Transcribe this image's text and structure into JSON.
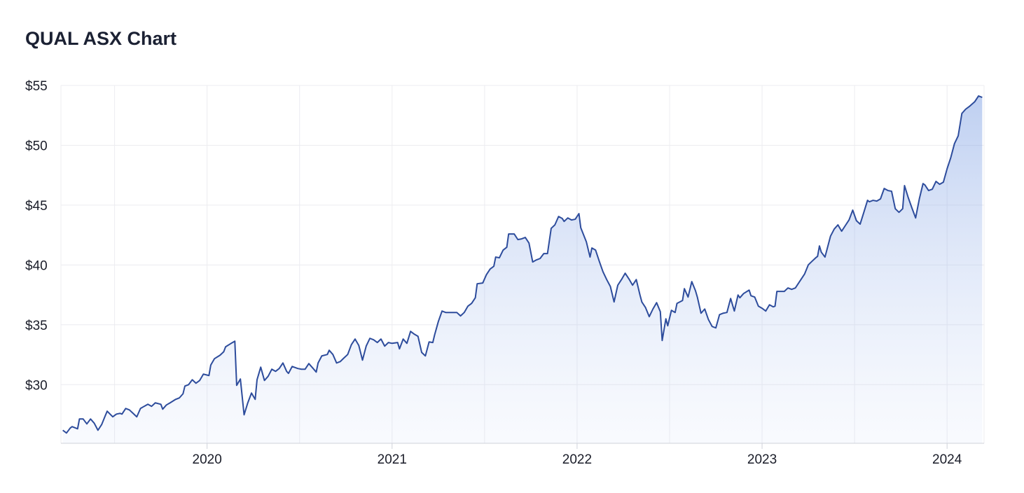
{
  "chart_data": {
    "type": "area",
    "title": "QUAL ASX Chart",
    "color": "#2d4c9c",
    "x": [
      2019.22,
      2019.24,
      2019.26,
      2019.27,
      2019.3,
      2019.31,
      2019.33,
      2019.35,
      2019.37,
      2019.39,
      2019.41,
      2019.43,
      2019.45,
      2019.46,
      2019.49,
      2019.51,
      2019.53,
      2019.54,
      2019.56,
      2019.58,
      2019.6,
      2019.62,
      2019.64,
      2019.66,
      2019.68,
      2019.7,
      2019.72,
      2019.75,
      2019.76,
      2019.78,
      2019.8,
      2019.83,
      2019.85,
      2019.87,
      2019.88,
      2019.9,
      2019.92,
      2019.94,
      2019.96,
      2019.98,
      2020.01,
      2020.02,
      2020.04,
      2020.07,
      2020.09,
      2020.1,
      2020.13,
      2020.15,
      2020.16,
      2020.18,
      2020.2,
      2020.22,
      2020.24,
      2020.26,
      2020.27,
      2020.29,
      2020.31,
      2020.33,
      2020.35,
      2020.37,
      2020.39,
      2020.41,
      2020.43,
      2020.44,
      2020.46,
      2020.49,
      2020.51,
      2020.53,
      2020.55,
      2020.57,
      2020.59,
      2020.6,
      2020.62,
      2020.65,
      2020.66,
      2020.68,
      2020.7,
      2020.72,
      2020.74,
      2020.76,
      2020.78,
      2020.8,
      2020.82,
      2020.84,
      2020.86,
      2020.88,
      2020.9,
      2020.92,
      2020.94,
      2020.96,
      2020.98,
      2021.0,
      2021.03,
      2021.04,
      2021.06,
      2021.08,
      2021.1,
      2021.12,
      2021.14,
      2021.16,
      2021.18,
      2021.2,
      2021.22,
      2021.23,
      2021.25,
      2021.27,
      2021.29,
      2021.32,
      2021.35,
      2021.37,
      2021.39,
      2021.41,
      2021.43,
      2021.45,
      2021.46,
      2021.49,
      2021.51,
      2021.53,
      2021.55,
      2021.56,
      2021.58,
      2021.6,
      2021.62,
      2021.63,
      2021.66,
      2021.68,
      2021.7,
      2021.72,
      2021.74,
      2021.76,
      2021.78,
      2021.8,
      2021.82,
      2021.84,
      2021.86,
      2021.88,
      2021.9,
      2021.92,
      2021.93,
      2021.95,
      2021.97,
      2021.99,
      2022.01,
      2022.02,
      2022.05,
      2022.07,
      2022.08,
      2022.1,
      2022.12,
      2022.14,
      2022.16,
      2022.18,
      2022.2,
      2022.22,
      2022.24,
      2022.26,
      2022.28,
      2022.3,
      2022.32,
      2022.34,
      2022.35,
      2022.37,
      2022.39,
      2022.41,
      2022.43,
      2022.45,
      2022.46,
      2022.48,
      2022.49,
      2022.51,
      2022.53,
      2022.54,
      2022.57,
      2022.58,
      2022.6,
      2022.62,
      2022.64,
      2022.65,
      2022.67,
      2022.69,
      2022.71,
      2022.73,
      2022.75,
      2022.77,
      2022.79,
      2022.81,
      2022.83,
      2022.85,
      2022.87,
      2022.88,
      2022.9,
      2022.93,
      2022.94,
      2022.96,
      2022.98,
      2023.0,
      2023.02,
      2023.04,
      2023.06,
      2023.07,
      2023.08,
      2023.1,
      2023.12,
      2023.14,
      2023.16,
      2023.18,
      2023.19,
      2023.21,
      2023.23,
      2023.25,
      2023.27,
      2023.29,
      2023.3,
      2023.31,
      2023.32,
      2023.34,
      2023.35,
      2023.37,
      2023.39,
      2023.41,
      2023.43,
      2023.45,
      2023.47,
      2023.49,
      2023.51,
      2023.53,
      2023.55,
      2023.57,
      2023.58,
      2023.6,
      2023.62,
      2023.64,
      2023.66,
      2023.68,
      2023.7,
      2023.72,
      2023.74,
      2023.76,
      2023.77,
      2023.79,
      2023.81,
      2023.83,
      2023.85,
      2023.87,
      2023.88,
      2023.9,
      2023.92,
      2023.94,
      2023.96,
      2023.98,
      2024.0,
      2024.02,
      2024.04,
      2024.06,
      2024.08,
      2024.1,
      2024.12,
      2024.15,
      2024.17,
      2024.19
    ],
    "values": [
      26.19,
      25.96,
      26.37,
      26.49,
      26.31,
      27.13,
      27.13,
      26.72,
      27.13,
      26.78,
      26.19,
      26.66,
      27.42,
      27.78,
      27.31,
      27.54,
      27.6,
      27.54,
      28.01,
      27.89,
      27.6,
      27.31,
      28.01,
      28.19,
      28.36,
      28.19,
      28.48,
      28.36,
      27.95,
      28.3,
      28.48,
      28.77,
      28.89,
      29.24,
      29.88,
      30.0,
      30.41,
      30.12,
      30.35,
      30.88,
      30.76,
      31.64,
      32.17,
      32.46,
      32.75,
      33.16,
      33.45,
      33.63,
      29.94,
      30.47,
      27.48,
      28.48,
      29.3,
      28.77,
      30.41,
      31.46,
      30.35,
      30.7,
      31.29,
      31.11,
      31.35,
      31.81,
      31.11,
      30.94,
      31.52,
      31.35,
      31.29,
      31.29,
      31.76,
      31.41,
      31.05,
      31.81,
      32.4,
      32.52,
      32.87,
      32.52,
      31.81,
      31.93,
      32.23,
      32.52,
      33.34,
      33.81,
      33.28,
      32.05,
      33.22,
      33.87,
      33.75,
      33.52,
      33.81,
      33.22,
      33.52,
      33.45,
      33.52,
      32.99,
      33.81,
      33.45,
      34.45,
      34.22,
      34.04,
      32.69,
      32.4,
      33.57,
      33.52,
      34.16,
      35.27,
      36.15,
      36.03,
      36.03,
      36.03,
      35.74,
      36.03,
      36.56,
      36.79,
      37.26,
      38.43,
      38.49,
      39.19,
      39.66,
      39.89,
      40.66,
      40.6,
      41.24,
      41.48,
      42.59,
      42.59,
      42.12,
      42.18,
      42.3,
      41.83,
      40.25,
      40.42,
      40.54,
      40.95,
      40.95,
      43.06,
      43.35,
      44.05,
      43.88,
      43.64,
      43.93,
      43.76,
      43.82,
      44.29,
      43.11,
      41.94,
      40.66,
      41.42,
      41.24,
      40.31,
      39.43,
      38.78,
      38.2,
      36.91,
      38.31,
      38.78,
      39.31,
      38.84,
      38.31,
      38.78,
      37.49,
      36.91,
      36.44,
      35.68,
      36.32,
      36.85,
      36.09,
      33.69,
      35.5,
      34.92,
      36.21,
      36.03,
      36.79,
      37.03,
      38.02,
      37.32,
      38.61,
      37.85,
      37.32,
      35.97,
      36.32,
      35.44,
      34.86,
      34.74,
      35.85,
      35.97,
      36.03,
      37.2,
      36.15,
      37.49,
      37.26,
      37.61,
      37.9,
      37.43,
      37.32,
      36.56,
      36.38,
      36.15,
      36.67,
      36.5,
      36.56,
      37.79,
      37.79,
      37.79,
      38.08,
      37.96,
      38.08,
      38.31,
      38.78,
      39.25,
      40.01,
      40.31,
      40.6,
      40.72,
      41.59,
      41.07,
      40.66,
      41.24,
      42.41,
      43.0,
      43.35,
      42.82,
      43.29,
      43.76,
      44.58,
      43.7,
      43.41,
      44.4,
      45.4,
      45.28,
      45.4,
      45.34,
      45.52,
      46.39,
      46.22,
      46.16,
      44.7,
      44.4,
      44.7,
      46.63,
      45.63,
      44.76,
      43.93,
      45.52,
      46.8,
      46.69,
      46.22,
      46.33,
      46.98,
      46.74,
      46.92,
      48.03,
      48.97,
      50.14,
      50.78,
      52.66,
      53.01,
      53.24,
      53.65,
      54.12,
      54.0
    ],
    "xlim": [
      2019.21,
      2024.2
    ],
    "xticks": [
      2020,
      2021,
      2022,
      2023,
      2024
    ],
    "xgrid": [
      2019.5,
      2020.5,
      2021.5,
      2022.5,
      2023.5
    ],
    "ylim": [
      25.1,
      55
    ],
    "yticks": [
      {
        "value": 30,
        "label": "$30"
      },
      {
        "value": 35,
        "label": "$35"
      },
      {
        "value": 40,
        "label": "$40"
      },
      {
        "value": 45,
        "label": "$45"
      },
      {
        "value": 50,
        "label": "$50"
      },
      {
        "value": 55,
        "label": "$55"
      }
    ],
    "grid": true
  }
}
